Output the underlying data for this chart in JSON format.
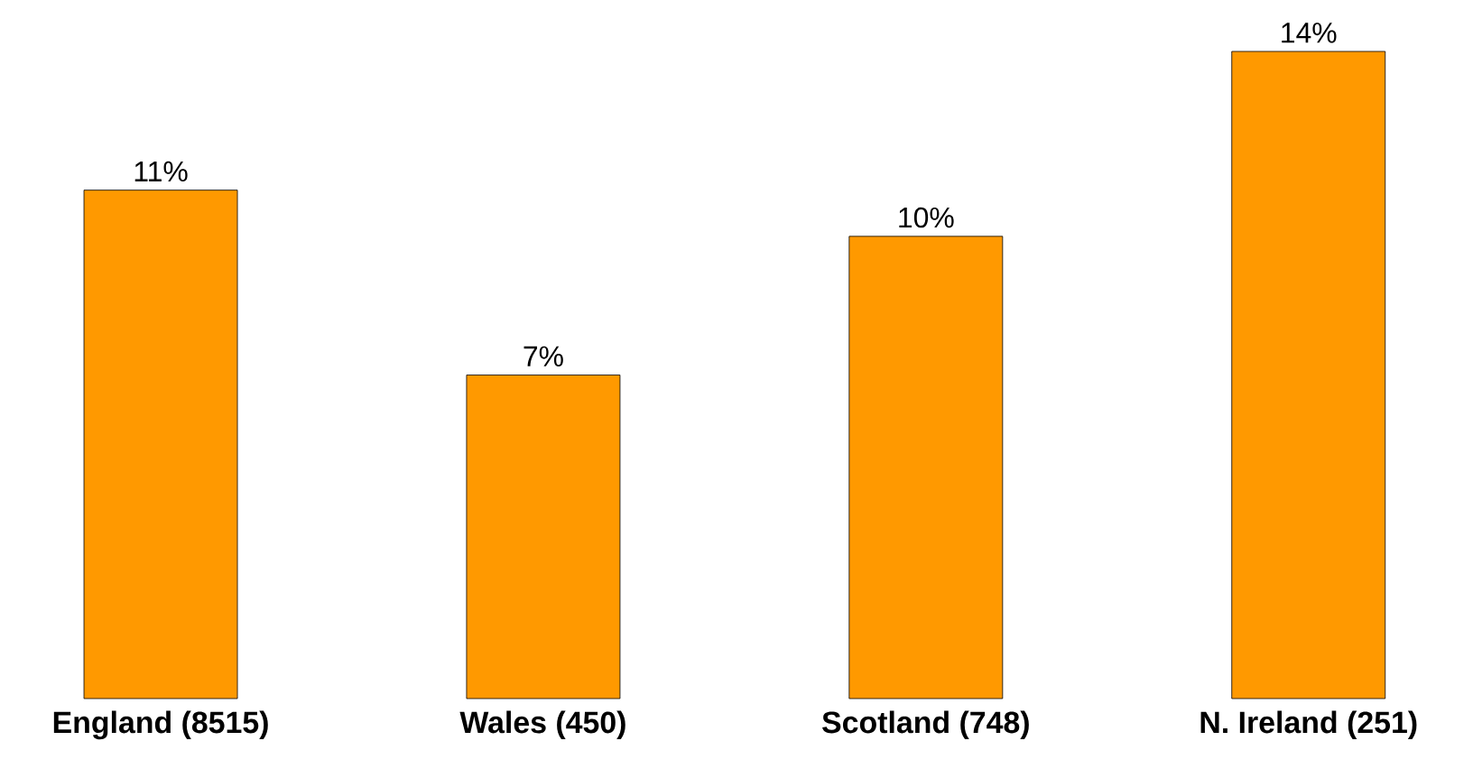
{
  "chart_data": {
    "type": "bar",
    "categories": [
      "England (8515)",
      "Wales (450)",
      "Scotland (748)",
      "N. Ireland (251)"
    ],
    "values": [
      11,
      7,
      10,
      14
    ],
    "value_labels": [
      "11%",
      "7%",
      "10%",
      "14%"
    ],
    "color": "#ff9900"
  }
}
